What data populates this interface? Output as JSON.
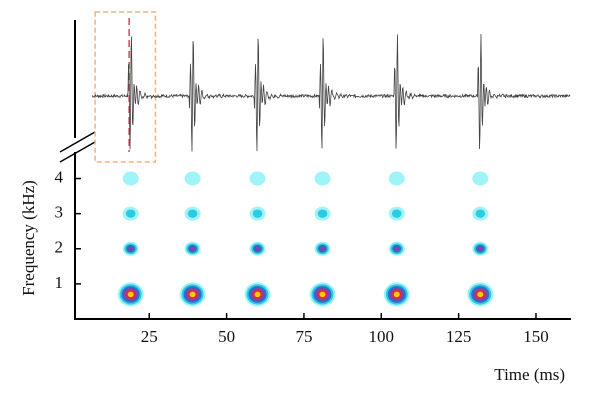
{
  "chart_data": {
    "type": "spectrogram",
    "x_label": "Time (ms)",
    "y_label": "Frequency (kHz)",
    "xlim": [
      1,
      161
    ],
    "xticks": [
      25,
      50,
      75,
      100,
      125,
      150
    ],
    "ylim": [
      0,
      4.3
    ],
    "yticks": [
      1,
      2,
      3,
      4
    ],
    "clicks": [
      19,
      39,
      60,
      81,
      105,
      132
    ],
    "bands": {
      "frequency": [
        0.7,
        2,
        3,
        4
      ],
      "intensity": [
        1,
        0.6,
        0.35,
        0.2
      ]
    },
    "colormap": [
      "#9ff4f8",
      "#2ccbe2",
      "#2f6ccc",
      "#7a48a8",
      "#e3264a",
      "#ffcc00"
    ],
    "highlight": {
      "x": [
        7.5,
        27
      ],
      "color": "#f4b27a"
    },
    "marker": {
      "x": 18.5,
      "color": "#e0405a"
    },
    "waveform_color": "#444444"
  }
}
